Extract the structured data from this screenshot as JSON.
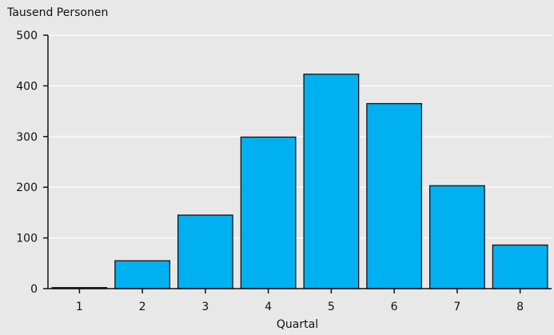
{
  "chart_data": {
    "type": "bar",
    "ylabel": "Tausend Personen",
    "xlabel": "Quartal",
    "categories": [
      "1",
      "2",
      "3",
      "4",
      "5",
      "6",
      "7",
      "8"
    ],
    "values": [
      2,
      55,
      145,
      299,
      423,
      365,
      203,
      86
    ],
    "ylim": [
      0,
      500
    ],
    "yticks": [
      0,
      100,
      200,
      300,
      400,
      500
    ],
    "grid": true,
    "legend": "none",
    "colors": {
      "bar_fill": "#00b0f0",
      "bar_stroke": "#111111",
      "grid": "#ffffff",
      "background": "#e8e8e8"
    }
  }
}
